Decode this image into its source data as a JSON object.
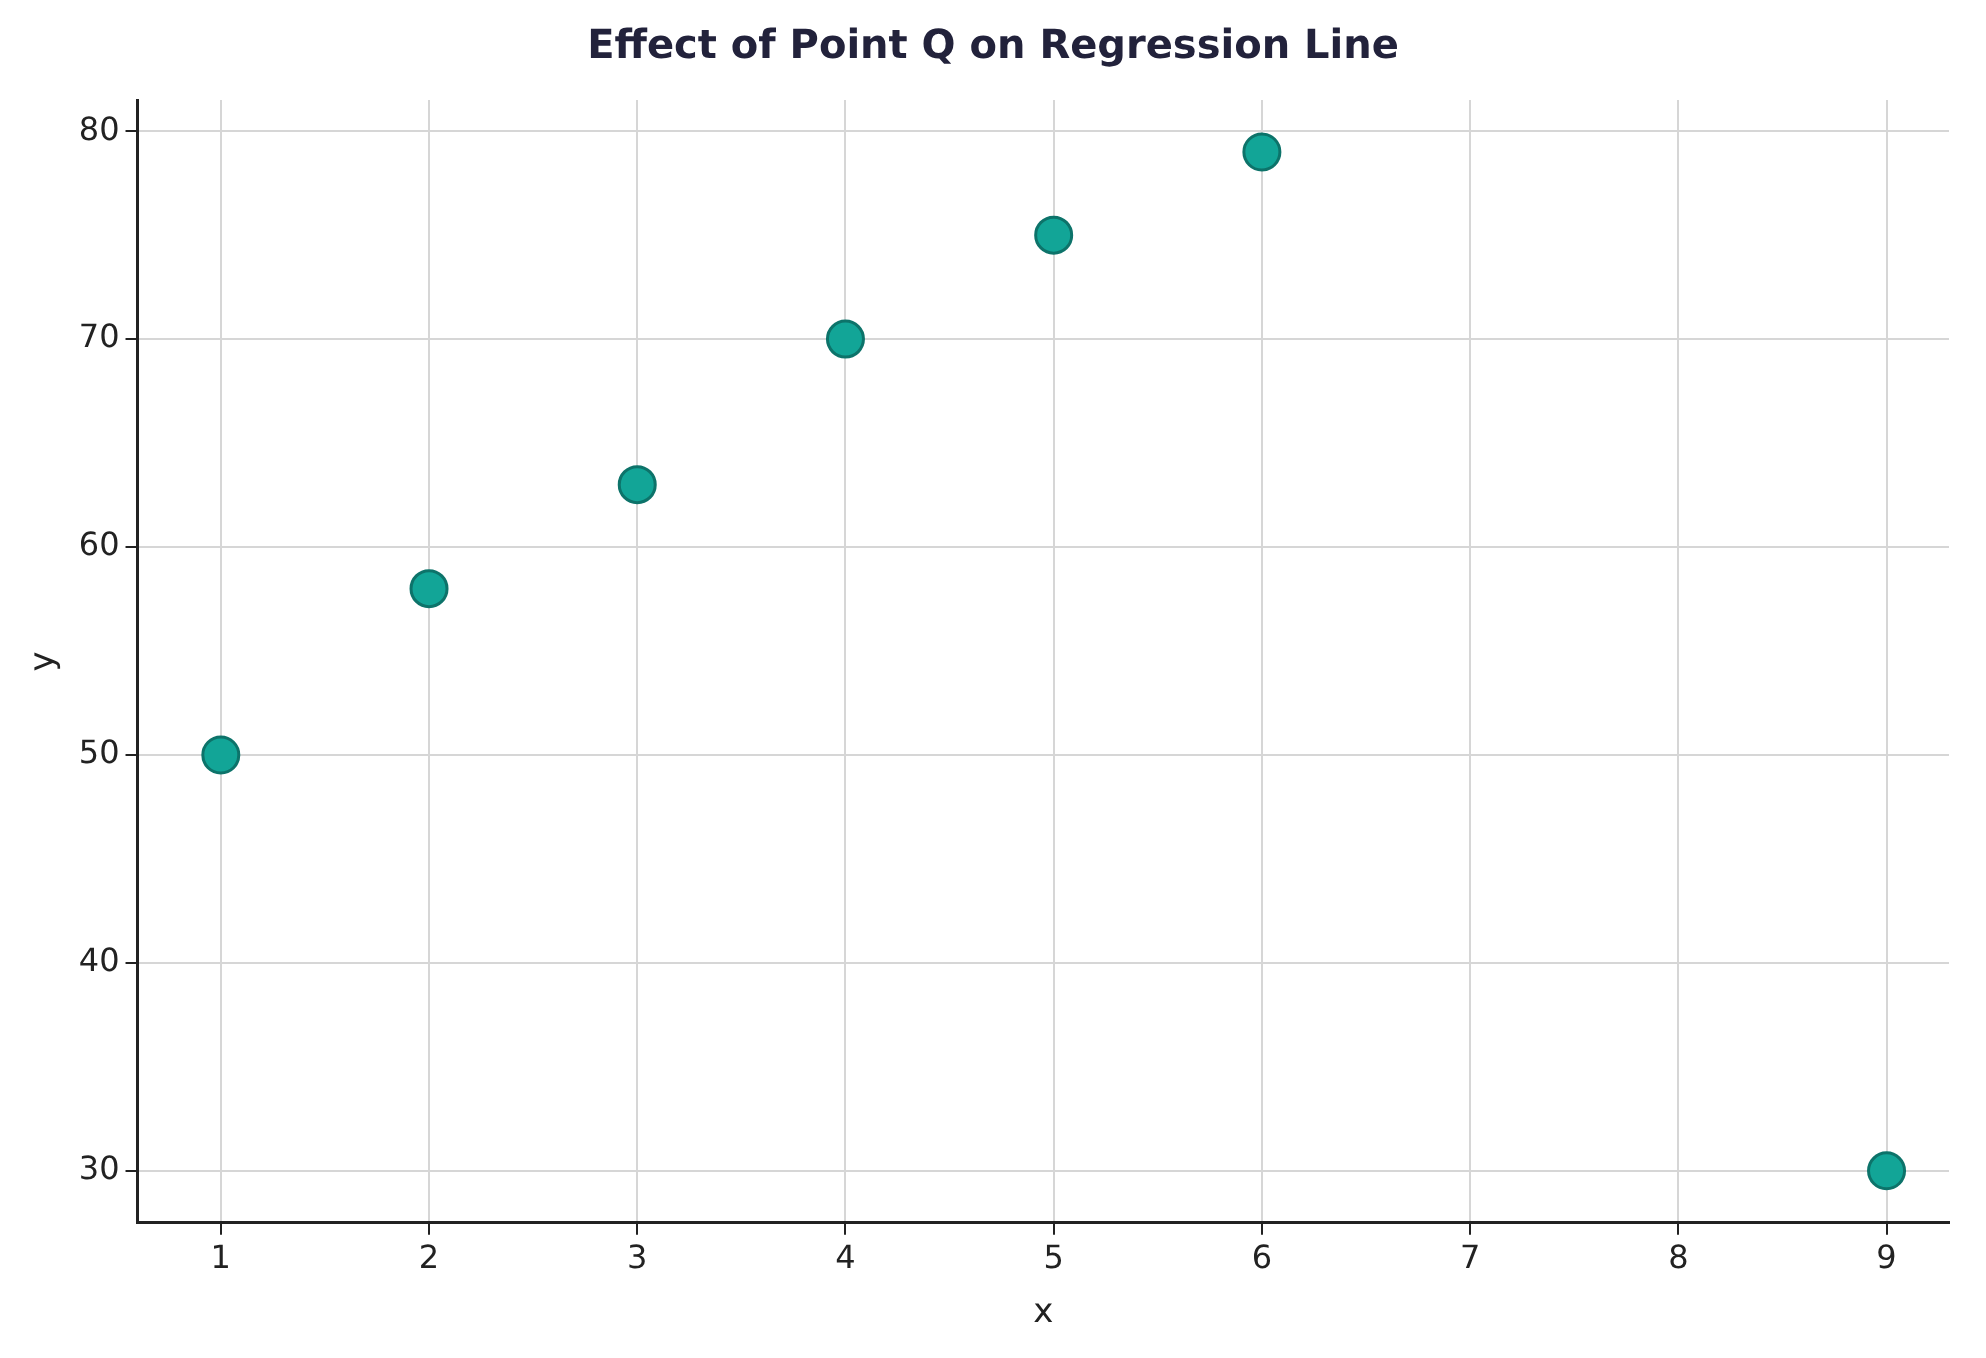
{
  "chart_data": {
    "type": "scatter",
    "title": "Effect of Point Q on Regression Line",
    "xlabel": "x",
    "ylabel": "y",
    "x": [
      1,
      2,
      3,
      4,
      5,
      6,
      9
    ],
    "series": [
      {
        "color": "#12a597",
        "values": [
          50,
          58,
          63,
          70,
          75,
          79,
          30
        ]
      }
    ],
    "xlim": [
      0.6,
      9.3
    ],
    "xticks": [
      1,
      2,
      3,
      4,
      5,
      6,
      7,
      8,
      9
    ],
    "ylim": [
      27.5,
      81.5
    ],
    "yticks": [
      30,
      40,
      50,
      60,
      70,
      80
    ],
    "grid": true,
    "legend": false,
    "marker": "circle"
  }
}
